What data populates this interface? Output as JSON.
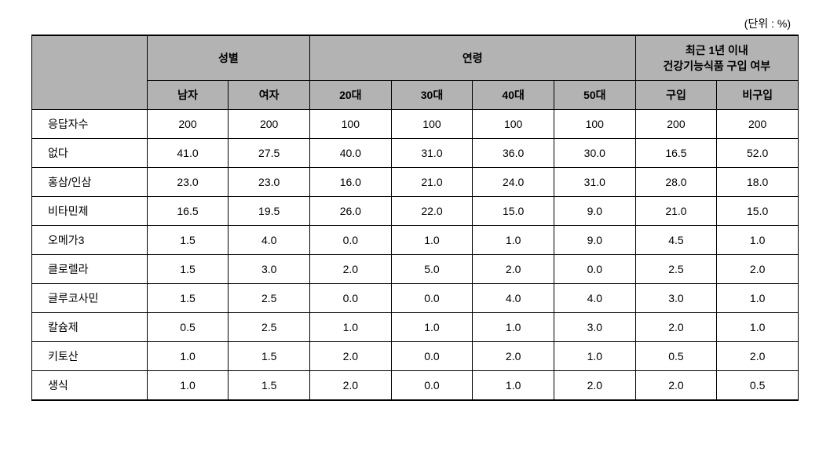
{
  "unit_label": "(단위 : %)",
  "table": {
    "type": "table",
    "background_color": "#ffffff",
    "header_bg_color": "#b3b3b3",
    "border_color": "#000000",
    "font_size": 14,
    "header_groups": [
      {
        "label": "성별",
        "span": 2
      },
      {
        "label": "연령",
        "span": 4
      },
      {
        "label": "최근 1년 이내\n건강기능식품 구입 여부",
        "span": 2
      }
    ],
    "sub_headers": [
      "남자",
      "여자",
      "20대",
      "30대",
      "40대",
      "50대",
      "구입",
      "비구입"
    ],
    "row_labels": [
      "응답자수",
      "없다",
      "홍삼/인삼",
      "비타민제",
      "오메가3",
      "클로렐라",
      "글루코사민",
      "칼슘제",
      "키토산",
      "생식"
    ],
    "rows": [
      [
        "200",
        "200",
        "100",
        "100",
        "100",
        "100",
        "200",
        "200"
      ],
      [
        "41.0",
        "27.5",
        "40.0",
        "31.0",
        "36.0",
        "30.0",
        "16.5",
        "52.0"
      ],
      [
        "23.0",
        "23.0",
        "16.0",
        "21.0",
        "24.0",
        "31.0",
        "28.0",
        "18.0"
      ],
      [
        "16.5",
        "19.5",
        "26.0",
        "22.0",
        "15.0",
        "9.0",
        "21.0",
        "15.0"
      ],
      [
        "1.5",
        "4.0",
        "0.0",
        "1.0",
        "1.0",
        "9.0",
        "4.5",
        "1.0"
      ],
      [
        "1.5",
        "3.0",
        "2.0",
        "5.0",
        "2.0",
        "0.0",
        "2.5",
        "2.0"
      ],
      [
        "1.5",
        "2.5",
        "0.0",
        "0.0",
        "4.0",
        "4.0",
        "3.0",
        "1.0"
      ],
      [
        "0.5",
        "2.5",
        "1.0",
        "1.0",
        "1.0",
        "3.0",
        "2.0",
        "1.0"
      ],
      [
        "1.0",
        "1.5",
        "2.0",
        "0.0",
        "2.0",
        "1.0",
        "0.5",
        "2.0"
      ],
      [
        "1.0",
        "1.5",
        "2.0",
        "0.0",
        "1.0",
        "2.0",
        "2.0",
        "0.5"
      ]
    ]
  }
}
